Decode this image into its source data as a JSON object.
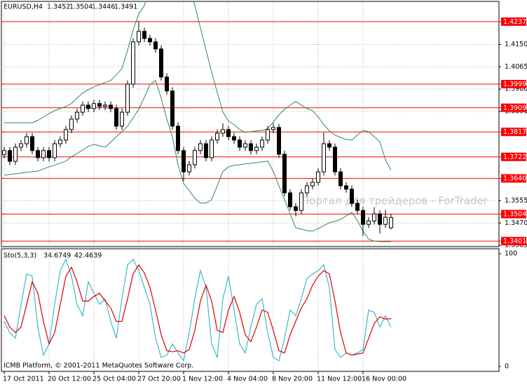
{
  "chart_data": [
    {
      "type": "candlestick",
      "title": "EURUSD,H4",
      "watermark": "Портал для трейдеров - ForTrader",
      "categories": [
        "17 Oct 2011",
        null,
        null,
        null,
        null,
        null,
        null,
        null,
        "20 Oct 12:00",
        null,
        null,
        null,
        null,
        null,
        null,
        null,
        "25 Oct 04:00",
        null,
        null,
        null,
        null,
        null,
        null,
        null,
        "27 Oct 20:00",
        null,
        null,
        null,
        null,
        null,
        null,
        null,
        "1 Nov 12:00",
        null,
        null,
        null,
        null,
        null,
        null,
        null,
        "4 Nov 04:00",
        null,
        null,
        null,
        null,
        null,
        null,
        null,
        "8 Nov 20:00",
        null,
        null,
        null,
        null,
        null,
        null,
        null,
        "11 Nov 12:00",
        null,
        null,
        null,
        null,
        null,
        null,
        null,
        "16 Nov 00:00",
        null,
        null,
        null,
        null,
        null
      ],
      "open": [
        1.373,
        1.3746,
        1.3705,
        1.3759,
        1.3772,
        1.3799,
        1.3746,
        1.3719,
        1.3746,
        1.3719,
        1.3772,
        1.3786,
        1.3826,
        1.3866,
        1.3892,
        1.3919,
        1.3906,
        1.3925,
        1.3914,
        1.3919,
        1.3906,
        1.3839,
        1.3892,
        1.3999,
        1.416,
        1.42,
        1.4173,
        1.416,
        1.4133,
        1.4026,
        1.3973,
        1.3839,
        1.3746,
        1.3665,
        1.3692,
        1.3746,
        1.3772,
        1.3719,
        1.3786,
        1.3812,
        1.3826,
        1.3799,
        1.3786,
        1.3759,
        1.3772,
        1.3746,
        1.3759,
        1.3786,
        1.3826,
        1.3834,
        1.3732,
        1.3585,
        1.3532,
        1.3518,
        1.3585,
        1.3612,
        1.3625,
        1.3665,
        1.3772,
        1.3759,
        1.3665,
        1.3612,
        1.3599,
        1.3545,
        1.3518,
        1.3465,
        1.3478,
        1.3505,
        1.3465,
        1.3452
      ],
      "high": [
        1.376,
        1.376,
        1.3773,
        1.3786,
        1.3813,
        1.3813,
        1.376,
        1.376,
        1.376,
        1.3786,
        1.38,
        1.384,
        1.388,
        1.3906,
        1.3933,
        1.3933,
        1.3939,
        1.3939,
        1.3933,
        1.3933,
        1.392,
        1.3906,
        1.4013,
        1.4174,
        1.424,
        1.4214,
        1.4187,
        1.4174,
        1.4147,
        1.404,
        1.3987,
        1.3853,
        1.376,
        1.3706,
        1.376,
        1.3786,
        1.3786,
        1.38,
        1.3826,
        1.385,
        1.384,
        1.3813,
        1.38,
        1.3786,
        1.3786,
        1.3773,
        1.38,
        1.384,
        1.385,
        1.3848,
        1.3746,
        1.3599,
        1.3546,
        1.3599,
        1.3626,
        1.3639,
        1.3679,
        1.3815,
        1.3786,
        1.3773,
        1.3679,
        1.3626,
        1.3613,
        1.3559,
        1.3532,
        1.3492,
        1.353,
        1.3519,
        1.352,
        1.3504
      ],
      "low": [
        1.3716,
        1.3691,
        1.3691,
        1.3745,
        1.3758,
        1.3732,
        1.3705,
        1.3705,
        1.3705,
        1.3705,
        1.3758,
        1.3772,
        1.3812,
        1.3852,
        1.3878,
        1.3892,
        1.3892,
        1.39,
        1.39,
        1.3892,
        1.3825,
        1.3825,
        1.3878,
        1.3985,
        1.4146,
        1.4159,
        1.4146,
        1.4119,
        1.4012,
        1.3959,
        1.3825,
        1.3732,
        1.363,
        1.3651,
        1.3678,
        1.3732,
        1.3705,
        1.3705,
        1.3772,
        1.3798,
        1.3785,
        1.3772,
        1.3745,
        1.3745,
        1.3732,
        1.3732,
        1.3745,
        1.3772,
        1.3812,
        1.3718,
        1.3571,
        1.3518,
        1.3495,
        1.3504,
        1.3571,
        1.3598,
        1.3611,
        1.3651,
        1.3745,
        1.3651,
        1.3598,
        1.3585,
        1.3531,
        1.3504,
        1.342,
        1.3451,
        1.3464,
        1.343,
        1.3451,
        1.3446
      ],
      "close": [
        1.3746,
        1.3705,
        1.3759,
        1.3772,
        1.3799,
        1.3746,
        1.3719,
        1.3746,
        1.3719,
        1.3772,
        1.3786,
        1.3826,
        1.3866,
        1.3892,
        1.3919,
        1.3906,
        1.3925,
        1.3914,
        1.3919,
        1.3906,
        1.3839,
        1.3892,
        1.3999,
        1.416,
        1.42,
        1.4173,
        1.416,
        1.4133,
        1.4026,
        1.3973,
        1.3839,
        1.3746,
        1.3665,
        1.3692,
        1.3746,
        1.3772,
        1.3719,
        1.3786,
        1.3812,
        1.3826,
        1.3799,
        1.3786,
        1.3759,
        1.3772,
        1.3746,
        1.3759,
        1.3786,
        1.3826,
        1.3834,
        1.3732,
        1.3585,
        1.3532,
        1.3518,
        1.3585,
        1.3612,
        1.3625,
        1.3665,
        1.3772,
        1.3759,
        1.3665,
        1.3612,
        1.3599,
        1.3545,
        1.3518,
        1.3465,
        1.3478,
        1.3505,
        1.3465,
        1.3492,
        1.3491
      ],
      "color": "#000000",
      "upper_band": [
        1.3852,
        1.3852,
        1.3852,
        1.3852,
        1.3852,
        1.3852,
        1.3861,
        1.3874,
        1.3887,
        1.3898,
        1.3906,
        1.3914,
        1.3925,
        1.3946,
        1.3965,
        1.3978,
        1.3989,
        1.3997,
        1.4005,
        1.4013,
        1.4034,
        1.4058,
        1.4128,
        1.4205,
        1.4266,
        1.4298,
        1.4373,
        1.4373,
        1.4373,
        1.4373,
        1.4373,
        1.4373,
        1.4373,
        1.4373,
        1.4298,
        1.4213,
        1.4128,
        1.4045,
        1.3967,
        1.3893,
        1.3858,
        1.3845,
        1.3826,
        1.3815,
        1.3818,
        1.3821,
        1.3823,
        1.3829,
        1.3855,
        1.3882,
        1.3903,
        1.3919,
        1.3933,
        1.3919,
        1.3906,
        1.3898,
        1.3874,
        1.3845,
        1.3821,
        1.3805,
        1.3796,
        1.3788,
        1.3786,
        1.3805,
        1.3823,
        1.3818,
        1.3799,
        1.378,
        1.3711,
        1.3671
      ],
      "lower_band": [
        1.3652,
        1.3655,
        1.3658,
        1.366,
        1.3663,
        1.3666,
        1.3668,
        1.3676,
        1.3684,
        1.369,
        1.3698,
        1.3706,
        1.3722,
        1.3735,
        1.3748,
        1.3762,
        1.377,
        1.3764,
        1.3759,
        1.3778,
        1.3799,
        1.3818,
        1.3839,
        1.3871,
        1.3903,
        1.3949,
        1.3997,
        1.4013,
        1.3946,
        1.3866,
        1.3799,
        1.3692,
        1.362,
        1.3594,
        1.3564,
        1.3546,
        1.3546,
        1.3559,
        1.3612,
        1.3666,
        1.3684,
        1.369,
        1.3692,
        1.3695,
        1.3698,
        1.37,
        1.3703,
        1.3706,
        1.3666,
        1.3612,
        1.3559,
        1.3505,
        1.3452,
        1.3447,
        1.3441,
        1.3439,
        1.3449,
        1.346,
        1.3471,
        1.3476,
        1.3484,
        1.3497,
        1.3511,
        1.3479,
        1.3439,
        1.3409,
        1.3401,
        1.3399,
        1.3399,
        1.3399
      ],
      "band_color": "#2e8b57",
      "levels": [
        1.4237,
        1.3999,
        1.3909,
        1.3817,
        1.3722,
        {
          "value": 1.364,
          "label": "1.3640"
        },
        1.3504,
        1.3401
      ],
      "level_color": "#ff0000",
      "ylim": [
        1.338,
        1.4314
      ],
      "yticks": [
        {
          "value": 1.415,
          "label": "1.4150"
        },
        {
          "value": 1.4065,
          "label": "1.4065"
        },
        {
          "value": 1.398,
          "label": "1.3980"
        },
        {
          "value": 1.3895,
          "label": "1.3895"
        },
        {
          "value": 1.3555,
          "label": "1.3555"
        },
        {
          "value": 1.347,
          "label": "1.3470"
        },
        {
          "value": 1.3385,
          "label": "1.3385"
        }
      ],
      "grid": true
    },
    {
      "type": "line",
      "title": "Sto(5,3,3)",
      "annotation": "ICMB Platform, © 2001-2011 MetaQuotes Software Corp.",
      "series": [
        {
          "color": "#3fb8c8",
          "values": [
            40,
            30,
            25,
            55,
            82,
            80,
            35,
            10,
            20,
            55,
            85,
            95,
            80,
            55,
            45,
            75,
            65,
            55,
            60,
            40,
            25,
            60,
            90,
            95,
            85,
            70,
            55,
            25,
            8,
            10,
            20,
            12,
            5,
            30,
            60,
            85,
            70,
            20,
            8,
            60,
            80,
            50,
            20,
            12,
            35,
            55,
            60,
            30,
            8,
            5,
            25,
            50,
            45,
            60,
            78,
            82,
            85,
            90,
            70,
            15,
            8,
            12,
            10,
            12,
            15,
            50,
            48,
            35,
            45,
            34.6749
          ]
        },
        {
          "color": "#e00000",
          "values": [
            45,
            35,
            30,
            35,
            55,
            75,
            65,
            40,
            20,
            30,
            55,
            80,
            88,
            75,
            58,
            58,
            62,
            65,
            58,
            52,
            40,
            40,
            60,
            82,
            90,
            83,
            70,
            50,
            28,
            14,
            13,
            14,
            12,
            15,
            32,
            58,
            72,
            58,
            32,
            30,
            50,
            62,
            48,
            28,
            22,
            35,
            50,
            48,
            32,
            14,
            12,
            28,
            40,
            52,
            60,
            72,
            80,
            85,
            82,
            58,
            30,
            12,
            10,
            11,
            12,
            25,
            38,
            44,
            42,
            42.4639
          ]
        }
      ],
      "ylim": [
        0,
        100
      ],
      "yticks": [
        0,
        100
      ],
      "grid": true
    }
  ]
}
